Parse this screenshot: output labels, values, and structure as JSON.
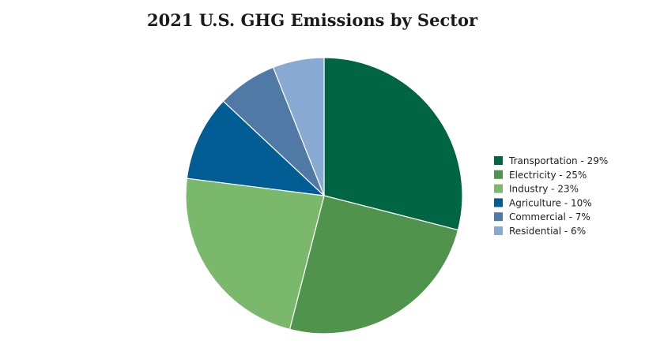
{
  "chart_data": {
    "type": "pie",
    "title": "2021 U.S. GHG Emissions by Sector",
    "start_angle_deg": 0,
    "direction": "clockwise",
    "legend_position": "right",
    "slices": [
      {
        "label": "Transportation - 29%",
        "value": 29,
        "color": "#006543"
      },
      {
        "label": "Electricity - 25%",
        "value": 25,
        "color": "#4f934c"
      },
      {
        "label": "Industry - 23%",
        "value": 23,
        "color": "#7ab86c"
      },
      {
        "label": "Agriculture - 10%",
        "value": 10,
        "color": "#025d95"
      },
      {
        "label": "Commercial - 7%",
        "value": 7,
        "color": "#5079a5"
      },
      {
        "label": "Residential - 6%",
        "value": 6,
        "color": "#88a9d1"
      }
    ]
  }
}
